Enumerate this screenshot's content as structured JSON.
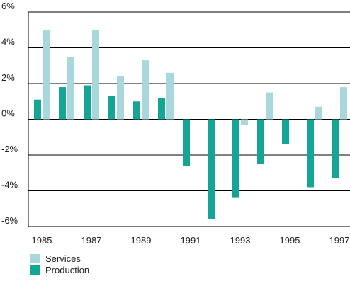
{
  "chart_data": {
    "type": "bar",
    "unit": "%",
    "categories": [
      "1985",
      "1986",
      "1987",
      "1988",
      "1989",
      "1990",
      "1991",
      "1992",
      "1993",
      "1994",
      "1995",
      "1996",
      "1997"
    ],
    "x_tick_labels": [
      "1985",
      "1987",
      "1989",
      "1991",
      "1993",
      "1995",
      "1997"
    ],
    "y_tick_labels": [
      "6%",
      "4%",
      "2%",
      "0%",
      "-2%",
      "-4%",
      "-6%"
    ],
    "ylim": [
      -6,
      6
    ],
    "y_ticks": [
      6,
      4,
      2,
      0,
      -2,
      -4,
      -6
    ],
    "grid": true,
    "legend_position": "bottom-left",
    "title": "",
    "xlabel": "",
    "ylabel": "",
    "series": [
      {
        "name": "Services",
        "color": "#a8d8dc",
        "values": [
          5.0,
          3.5,
          5.0,
          2.4,
          3.3,
          2.6,
          0.0,
          0.0,
          -0.3,
          1.5,
          0.0,
          0.7,
          1.8
        ]
      },
      {
        "name": "Production",
        "color": "#14a595",
        "values": [
          1.1,
          1.8,
          1.9,
          1.3,
          1.0,
          1.2,
          -2.6,
          -5.6,
          -4.4,
          -2.5,
          -1.4,
          -3.8,
          -3.3
        ]
      }
    ]
  }
}
